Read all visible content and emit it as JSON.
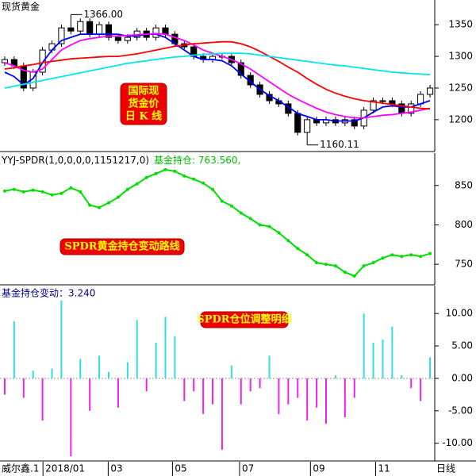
{
  "chart_data": [
    {
      "type": "candlestick",
      "title": "现货黄金",
      "xlim": [
        -0.5,
        45.5
      ],
      "ylim": [
        1151,
        1389
      ],
      "yticks": [
        1200,
        1250,
        1300,
        1350
      ],
      "open": [
        1290,
        1295,
        1285,
        1250,
        1275,
        1310,
        1320,
        1345,
        1340,
        1355,
        1335,
        1350,
        1330,
        1325,
        1330,
        1340,
        1330,
        1345,
        1335,
        1320,
        1315,
        1300,
        1295,
        1300,
        1300,
        1290,
        1270,
        1255,
        1240,
        1230,
        1225,
        1210,
        1180,
        1200,
        1195,
        1200,
        1195,
        1200,
        1190,
        1215,
        1230,
        1230,
        1225,
        1210,
        1225,
        1240
      ],
      "high": [
        1300,
        1300,
        1290,
        1280,
        1315,
        1325,
        1350,
        1366,
        1360,
        1360,
        1355,
        1355,
        1335,
        1335,
        1345,
        1345,
        1350,
        1350,
        1340,
        1325,
        1320,
        1305,
        1305,
        1305,
        1305,
        1295,
        1275,
        1260,
        1245,
        1235,
        1230,
        1215,
        1205,
        1205,
        1205,
        1205,
        1205,
        1205,
        1220,
        1235,
        1235,
        1235,
        1230,
        1230,
        1245,
        1255
      ],
      "low": [
        1285,
        1280,
        1245,
        1245,
        1270,
        1305,
        1315,
        1335,
        1335,
        1330,
        1330,
        1325,
        1320,
        1320,
        1325,
        1325,
        1325,
        1330,
        1315,
        1310,
        1295,
        1290,
        1290,
        1295,
        1285,
        1265,
        1250,
        1235,
        1225,
        1220,
        1205,
        1175,
        1160.11,
        1190,
        1190,
        1190,
        1190,
        1185,
        1185,
        1210,
        1225,
        1220,
        1205,
        1205,
        1220,
        1235
      ],
      "close": [
        1295,
        1285,
        1250,
        1275,
        1310,
        1320,
        1345,
        1340,
        1355,
        1335,
        1350,
        1330,
        1325,
        1330,
        1340,
        1330,
        1345,
        1335,
        1320,
        1315,
        1300,
        1295,
        1300,
        1300,
        1290,
        1270,
        1255,
        1240,
        1230,
        1225,
        1210,
        1180,
        1200,
        1195,
        1200,
        1195,
        1200,
        1190,
        1215,
        1230,
        1230,
        1225,
        1210,
        1225,
        1240,
        1250
      ],
      "up_color": "#ffffff",
      "down_color": "#000000",
      "series": [
        {
          "color": "#0000ff",
          "values": [
            1275,
            1268,
            1255,
            1265,
            1290,
            1310,
            1325,
            1330,
            1335,
            1335,
            1335,
            1335,
            1335,
            1332,
            1332,
            1335,
            1335,
            1330,
            1320,
            1310,
            1300,
            1295,
            1295,
            1293,
            1285,
            1272,
            1260,
            1248,
            1238,
            1230,
            1220,
            1210,
            1205,
            1200,
            1200,
            1198,
            1198,
            1198,
            1203,
            1212,
            1220,
            1222,
            1220,
            1220,
            1225,
            1230
          ]
        },
        {
          "color": "#ff00ff",
          "values": [
            1290,
            1285,
            1278,
            1275,
            1280,
            1295,
            1310,
            1318,
            1325,
            1328,
            1330,
            1332,
            1332,
            1333,
            1334,
            1335,
            1336,
            1335,
            1330,
            1325,
            1318,
            1310,
            1305,
            1300,
            1295,
            1288,
            1280,
            1270,
            1260,
            1250,
            1240,
            1232,
            1225,
            1218,
            1212,
            1208,
            1205,
            1203,
            1203,
            1205,
            1207,
            1208,
            1210,
            1212,
            1215,
            1218
          ]
        },
        {
          "color": "#ff0000",
          "values": [
            1280,
            1282,
            1285,
            1287,
            1290,
            1292,
            1294,
            1296,
            1297,
            1298,
            1299,
            1300,
            1300,
            1302,
            1304,
            1307,
            1310,
            1313,
            1316,
            1318,
            1320,
            1321,
            1322,
            1323,
            1323,
            1320,
            1315,
            1308,
            1300,
            1292,
            1283,
            1275,
            1265,
            1256,
            1248,
            1242,
            1237,
            1233,
            1230,
            1228,
            1226,
            1224,
            1222,
            1220,
            1218,
            1217
          ]
        },
        {
          "color": "#00e5ee",
          "values": [
            1250,
            1253,
            1256,
            1259,
            1262,
            1265,
            1268,
            1271,
            1274,
            1277,
            1280,
            1283,
            1286,
            1289,
            1291,
            1293,
            1295,
            1297,
            1299,
            1300,
            1302,
            1303,
            1304,
            1305,
            1305,
            1305,
            1304,
            1302,
            1300,
            1298,
            1296,
            1294,
            1292,
            1290,
            1288,
            1286,
            1285,
            1283,
            1281,
            1279,
            1277,
            1275,
            1274,
            1273,
            1272,
            1271
          ]
        }
      ],
      "annotations": [
        {
          "x": 7,
          "value": 1366,
          "label": "1366.00"
        },
        {
          "x": 32,
          "value": 1160.11,
          "label": "1160.11"
        }
      ],
      "note_lines": [
        "国际现",
        "货金价",
        "日 K 线"
      ]
    },
    {
      "type": "line",
      "title": "YYJ-SPDR(1,0,0,0,0,1151217,0)",
      "subtitle": "基金持仓: 763.560,",
      "xlim": [
        -0.5,
        45.5
      ],
      "ylim": [
        725,
        891
      ],
      "yticks": [
        750,
        800,
        850
      ],
      "color": "#00dd00",
      "values": [
        843,
        845,
        842,
        844,
        842,
        838,
        840,
        847,
        842,
        825,
        822,
        828,
        835,
        845,
        852,
        860,
        865,
        870,
        868,
        862,
        858,
        853,
        845,
        830,
        824,
        815,
        808,
        800,
        798,
        790,
        780,
        770,
        762,
        752,
        750,
        748,
        740,
        735,
        748,
        752,
        758,
        762,
        760,
        762,
        760,
        763.56
      ],
      "note": "SPDR黄金持仓变动路线"
    },
    {
      "type": "bar",
      "title": "基金持仓变动：3.240",
      "xlim": [
        -0.5,
        45.5
      ],
      "ylim": [
        -12.6,
        14.3
      ],
      "yticks": [
        {
          "value": 10,
          "label": "10.00"
        },
        {
          "value": 5,
          "label": "5.00"
        },
        {
          "value": 0,
          "label": "0.00"
        },
        {
          "value": -5,
          "label": "-5.00"
        },
        {
          "value": -10,
          "label": "-10.00"
        }
      ],
      "up_color": "#33dddd",
      "down_color": "#ee22ee",
      "values": [
        -2.5,
        8.8,
        -3,
        1.2,
        -6.5,
        1.5,
        12,
        -12,
        3,
        -5,
        3.5,
        1,
        -4.5,
        2.5,
        9,
        -2,
        5.5,
        9.5,
        6.5,
        -3.5,
        -2,
        -5.5,
        -4,
        -11,
        2,
        -4,
        -2,
        -1.5,
        3.5,
        -5.5,
        -4,
        -3,
        -6.5,
        -4.5,
        -7,
        0.5,
        -6,
        -3,
        10,
        5.5,
        6,
        8,
        0.5,
        -1.5,
        -3.5,
        3.24
      ],
      "note": "SPDR仓位调整明细",
      "xticks": [
        {
          "value": 4.3,
          "label": "2018/01"
        },
        {
          "value": 11.2,
          "label": "03"
        },
        {
          "value": 18,
          "label": "05"
        },
        {
          "value": 25.1,
          "label": "07"
        },
        {
          "value": 32.6,
          "label": "09"
        },
        {
          "value": 39.5,
          "label": "11"
        }
      ],
      "footer_left": "威尔鑫.1",
      "footer_right": "日线"
    }
  ]
}
